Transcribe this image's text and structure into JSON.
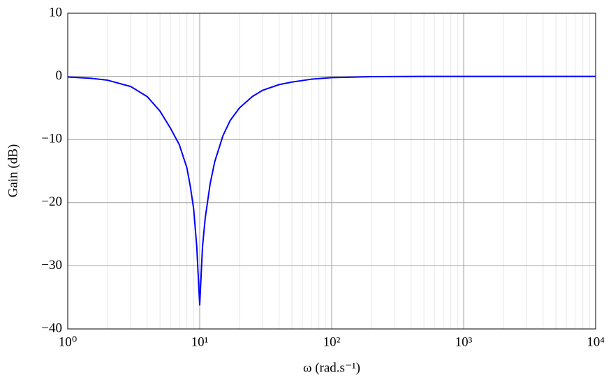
{
  "chart_data": {
    "type": "line",
    "xlabel": "ω (rad.s⁻¹)",
    "ylabel": "Gain (dB)",
    "x": [
      1,
      1.5,
      2,
      3,
      4,
      5,
      6,
      7,
      8,
      8.5,
      9,
      9.5,
      10,
      10.5,
      11,
      12,
      13,
      15,
      17,
      20,
      25,
      30,
      40,
      50,
      70,
      100,
      200,
      500,
      1000,
      3000,
      10000
    ],
    "series": [
      {
        "name": "Gain",
        "color": "#0000ff",
        "values": [
          -0.1,
          -0.3,
          -0.6,
          -1.6,
          -3.2,
          -5.5,
          -8.2,
          -10.8,
          -14.5,
          -17.5,
          -21,
          -27,
          -36.2,
          -27,
          -22.5,
          -17,
          -13.5,
          -9.4,
          -7,
          -5,
          -3.2,
          -2.2,
          -1.3,
          -0.9,
          -0.45,
          -0.2,
          -0.05,
          0,
          0,
          0,
          0
        ]
      }
    ],
    "xlim": [
      1,
      10000
    ],
    "xticks": [
      {
        "value": 1,
        "label": "10⁰"
      },
      {
        "value": 10,
        "label": "10¹"
      },
      {
        "value": 100,
        "label": "10²"
      },
      {
        "value": 1000,
        "label": "10³"
      },
      {
        "value": 10000,
        "label": "10⁴"
      }
    ],
    "xscale": "log",
    "ylim": [
      -40,
      10
    ],
    "yticks": [
      {
        "value": -40,
        "label": "−40"
      },
      {
        "value": -30,
        "label": "−30"
      },
      {
        "value": -20,
        "label": "−20"
      },
      {
        "value": -10,
        "label": "−10"
      },
      0,
      10
    ],
    "grid": true
  }
}
